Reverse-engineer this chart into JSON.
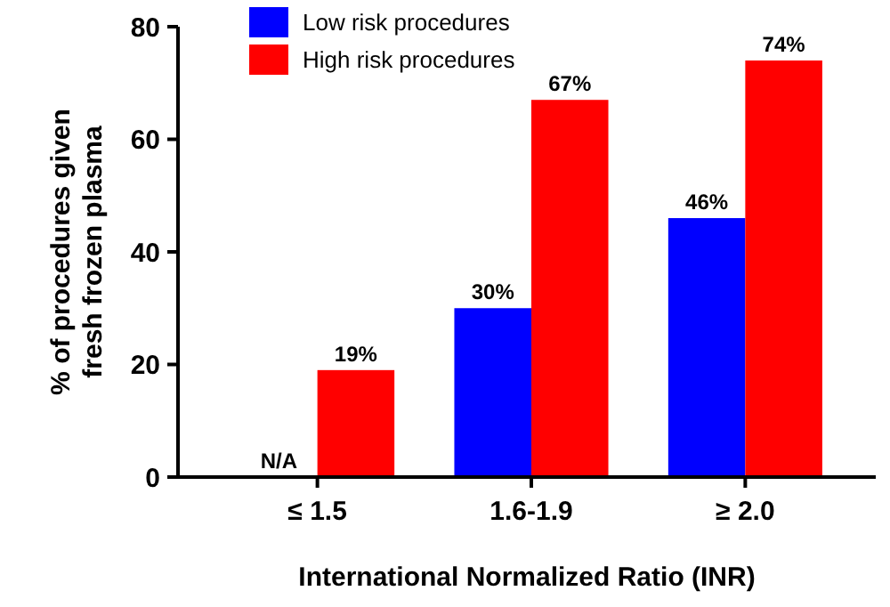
{
  "chart_data": {
    "type": "bar",
    "xlabel": "International Normalized Ratio (INR)",
    "ylabel": "% of procedures given fresh frozen plasma",
    "categories": [
      "≤ 1.5",
      "1.6-1.9",
      "≥ 2.0"
    ],
    "series": [
      {
        "name": "Low risk procedures",
        "color": "#0000ff",
        "values": [
          null,
          30,
          46
        ],
        "value_labels": [
          "N/A",
          "30%",
          "46%"
        ]
      },
      {
        "name": "High risk procedures",
        "color": "#ff0000",
        "values": [
          19,
          67,
          74
        ],
        "value_labels": [
          "19%",
          "67%",
          "74%"
        ]
      }
    ],
    "ylim": [
      0,
      80
    ],
    "yticks": [
      0,
      20,
      40,
      60,
      80
    ],
    "grid": false,
    "legend": "top left"
  }
}
